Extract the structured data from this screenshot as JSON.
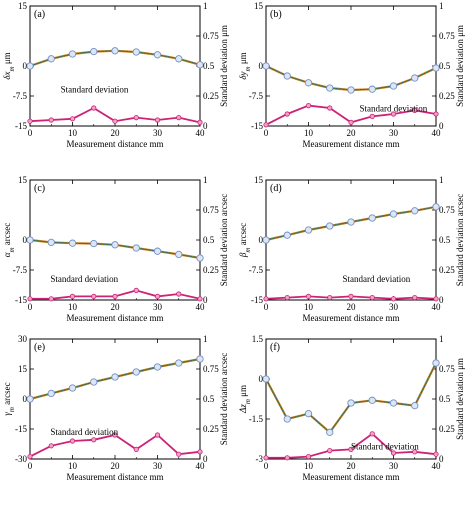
{
  "chart_data": [
    {
      "type": "line",
      "panel_label": "(a)",
      "xlabel": "Measurement distance   mm",
      "ylabel": "δx_m   μm",
      "ylabel_main": "δx",
      "ylabel_sub": "m",
      "ylabel_unit": "μm",
      "y2label": "Standard deviation   μm",
      "annotation": "Standard deviation",
      "xlim": [
        0,
        40
      ],
      "ylim": [
        -15,
        15
      ],
      "y2lim": [
        0,
        1
      ],
      "xticks": [
        "0",
        "10",
        "20",
        "30",
        "40"
      ],
      "yticks": [
        "15",
        "0",
        "-7.5",
        "-15"
      ],
      "yticks_v": [
        15,
        0,
        -7.5,
        -15
      ],
      "y2ticks": [
        "1",
        "0.75",
        "0.5",
        "0.25",
        "0"
      ],
      "x": [
        0,
        5,
        10,
        15,
        20,
        25,
        30,
        35,
        40
      ],
      "series": [
        {
          "values": [
            0,
            1.8,
            3.0,
            3.6,
            3.8,
            3.5,
            2.8,
            1.8,
            0.3
          ]
        },
        {
          "values": [
            0.04,
            0.05,
            0.06,
            0.15,
            0.04,
            0.07,
            0.05,
            0.07,
            0.03
          ]
        }
      ]
    },
    {
      "type": "line",
      "panel_label": "(b)",
      "xlabel": "Measurement distance   mm",
      "ylabel": "δy_m   μm",
      "ylabel_main": "δy",
      "ylabel_sub": "m",
      "ylabel_unit": "μm",
      "y2label": "Standard deviation   μm",
      "annotation": "Standard deviation",
      "xlim": [
        0,
        40
      ],
      "ylim": [
        -15,
        15
      ],
      "y2lim": [
        0,
        1
      ],
      "xticks": [
        "0",
        "10",
        "20",
        "30",
        "40"
      ],
      "yticks": [
        "15",
        "0",
        "-7.5",
        "-15"
      ],
      "yticks_v": [
        15,
        0,
        -7.5,
        -15
      ],
      "y2ticks": [
        "1",
        "0.75",
        "0.5",
        "0.25",
        "0"
      ],
      "x": [
        0,
        5,
        10,
        15,
        20,
        25,
        30,
        35,
        40
      ],
      "series": [
        {
          "values": [
            0,
            -2.5,
            -4.2,
            -5.5,
            -6.0,
            -5.8,
            -5.0,
            -3.0,
            -0.5
          ]
        },
        {
          "values": [
            0.01,
            0.1,
            0.17,
            0.15,
            0.03,
            0.08,
            0.1,
            0.13,
            0.1
          ]
        }
      ]
    },
    {
      "type": "line",
      "panel_label": "(c)",
      "xlabel": "Measurement distance   mm",
      "ylabel": "α_m   arcsec",
      "ylabel_main": "α",
      "ylabel_sub": "m",
      "ylabel_unit": "arcsec",
      "y2label": "Standard deviation   arcsec",
      "annotation": "Standard deviation",
      "xlim": [
        0,
        40
      ],
      "ylim": [
        -15,
        15
      ],
      "y2lim": [
        0,
        1
      ],
      "xticks": [
        "0",
        "10",
        "20",
        "30",
        "40"
      ],
      "yticks": [
        "15",
        "0",
        "-7.5",
        "-15"
      ],
      "yticks_v": [
        15,
        0,
        -7.5,
        -15
      ],
      "y2ticks": [
        "1",
        "0.75",
        "0.5",
        "0.25",
        "0"
      ],
      "x": [
        0,
        5,
        10,
        15,
        20,
        25,
        30,
        35,
        40
      ],
      "series": [
        {
          "values": [
            0,
            -0.6,
            -0.8,
            -0.9,
            -1.2,
            -2.0,
            -2.8,
            -3.6,
            -4.5
          ]
        },
        {
          "values": [
            0.01,
            0.01,
            0.03,
            0.03,
            0.03,
            0.08,
            0.03,
            0.05,
            0.01
          ]
        }
      ]
    },
    {
      "type": "line",
      "panel_label": "(d)",
      "xlabel": "Measurement distance   mm",
      "ylabel": "β_m   arcsec",
      "ylabel_main": "β",
      "ylabel_sub": "m",
      "ylabel_unit": "arcsec",
      "y2label": "Standard deviation   arcsec",
      "annotation": "Standard deviation",
      "xlim": [
        0,
        40
      ],
      "ylim": [
        -15,
        15
      ],
      "y2lim": [
        0,
        1
      ],
      "xticks": [
        "0",
        "10",
        "20",
        "30",
        "40"
      ],
      "yticks": [
        "15",
        "0",
        "-7.5",
        "-15"
      ],
      "yticks_v": [
        15,
        0,
        -7.5,
        -15
      ],
      "y2ticks": [
        "1",
        "0.75",
        "0.5",
        "0.25",
        "0"
      ],
      "x": [
        0,
        5,
        10,
        15,
        20,
        25,
        30,
        35,
        40
      ],
      "series": [
        {
          "values": [
            0,
            1.2,
            2.5,
            3.5,
            4.5,
            5.5,
            6.5,
            7.3,
            8.3
          ]
        },
        {
          "values": [
            0.01,
            0.02,
            0.03,
            0.02,
            0.03,
            0.02,
            0.01,
            0.02,
            0.01
          ]
        }
      ]
    },
    {
      "type": "line",
      "panel_label": "(e)",
      "xlabel": "Measurement distance   mm",
      "ylabel": "γ_m   arcsec",
      "ylabel_main": "γ",
      "ylabel_sub": "m",
      "ylabel_unit": "arcsec",
      "y2label": "Standard deviation   arcsec",
      "annotation": "Standard deviation",
      "xlim": [
        0,
        40
      ],
      "ylim": [
        -30,
        30
      ],
      "y2lim": [
        0,
        1
      ],
      "xticks": [
        "0",
        "10",
        "20",
        "30",
        "40"
      ],
      "yticks": [
        "30",
        "15",
        "0",
        "-15",
        "-30"
      ],
      "yticks_v": [
        30,
        15,
        0,
        -15,
        -30
      ],
      "y2ticks": [
        "1",
        "0.75",
        "0.5",
        "0.25",
        "0"
      ],
      "x": [
        0,
        5,
        10,
        15,
        20,
        25,
        30,
        35,
        40
      ],
      "series": [
        {
          "values": [
            0,
            2.8,
            5.5,
            8.5,
            11,
            13.5,
            16,
            18,
            20
          ]
        },
        {
          "values": [
            0.02,
            0.11,
            0.15,
            0.16,
            0.2,
            0.08,
            0.2,
            0.04,
            0.06
          ]
        }
      ]
    },
    {
      "type": "line",
      "panel_label": "(f)",
      "xlabel": "Measurement distance   mm",
      "ylabel": "Δz_m   μm",
      "ylabel_main": "Δz",
      "ylabel_sub": "m",
      "ylabel_unit": "μm",
      "y2label": "Standard deviation   μm",
      "annotation": "Standard deviation",
      "xlim": [
        0,
        40
      ],
      "ylim": [
        -3,
        1.5
      ],
      "y2lim": [
        0,
        1
      ],
      "xticks": [
        "0",
        "10",
        "20",
        "30",
        "40"
      ],
      "yticks": [
        "1.5",
        "0",
        "-1.5",
        "-3"
      ],
      "yticks_v": [
        1.5,
        0,
        -1.5,
        -3
      ],
      "y2ticks": [
        "1",
        "0.75",
        "0.5",
        "0.25",
        "0"
      ],
      "x": [
        0,
        5,
        10,
        15,
        20,
        25,
        30,
        35,
        40
      ],
      "series": [
        {
          "values": [
            0,
            -1.5,
            -1.3,
            -2.0,
            -0.9,
            -0.8,
            -0.9,
            -1.0,
            0.6
          ]
        },
        {
          "values": [
            0.01,
            0.01,
            0.02,
            0.07,
            0.08,
            0.21,
            0.05,
            0.06,
            0.04
          ]
        }
      ]
    }
  ]
}
